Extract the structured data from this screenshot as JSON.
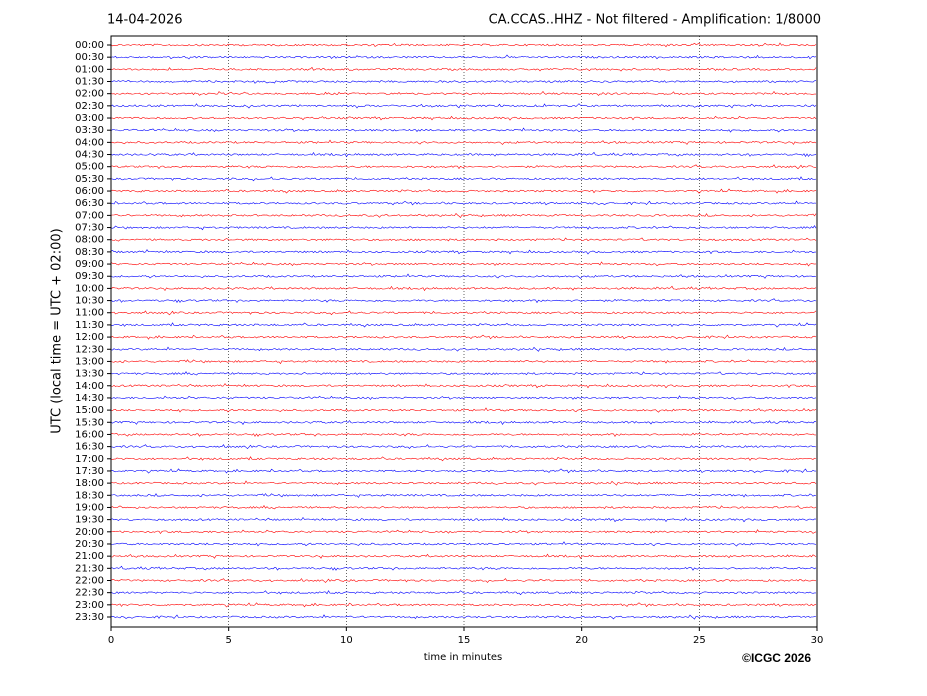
{
  "chart_data": {
    "type": "helicorder",
    "title_left": "14-04-2026",
    "title_right": "CA.CCAS..HHZ - Not filtered - Amplification: 1/8000",
    "xlabel": "time in minutes",
    "ylabel": "UTC (local time = UTC + 02:00)",
    "footer": "©ICGC 2026",
    "categories": [
      "00:00",
      "00:30",
      "01:00",
      "01:30",
      "02:00",
      "02:30",
      "03:00",
      "03:30",
      "04:00",
      "04:30",
      "05:00",
      "05:30",
      "06:00",
      "06:30",
      "07:00",
      "07:30",
      "08:00",
      "08:30",
      "09:00",
      "09:30",
      "10:00",
      "10:30",
      "11:00",
      "11:30",
      "12:00",
      "12:30",
      "13:00",
      "13:30",
      "14:00",
      "14:30",
      "15:00",
      "15:30",
      "16:00",
      "16:30",
      "17:00",
      "17:30",
      "18:00",
      "18:30",
      "19:00",
      "19:30",
      "20:00",
      "20:30",
      "21:00",
      "21:30",
      "22:00",
      "22:30",
      "23:00",
      "23:30"
    ],
    "colors": [
      "#ff0000",
      "#0000ff"
    ],
    "xlim": [
      0,
      30
    ],
    "xticks": [
      0,
      5,
      10,
      15,
      20,
      25,
      30
    ],
    "grid": true
  }
}
